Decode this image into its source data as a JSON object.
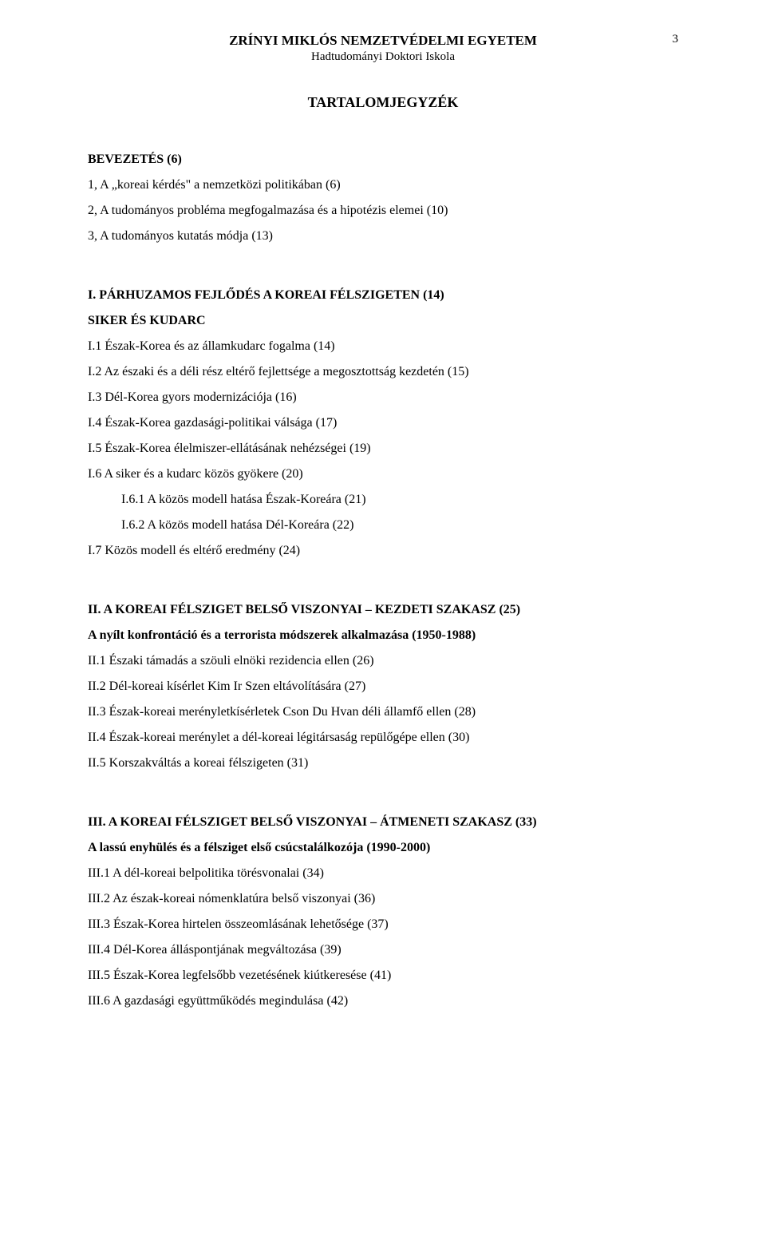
{
  "header": {
    "university": "ZRÍNYI MIKLÓS NEMZETVÉDELMI EGYETEM",
    "school": "Hadtudományi Doktori Iskola",
    "page_number": "3"
  },
  "title": "TARTALOMJEGYZÉK",
  "intro": {
    "heading": "BEVEZETÉS (6)",
    "items": [
      "1, A „koreai kérdés\" a nemzetközi politikában (6)",
      "2, A tudományos probléma megfogalmazása és a hipotézis elemei (10)",
      "3, A tudományos kutatás módja (13)"
    ]
  },
  "chapter1": {
    "heading": "I. PÁRHUZAMOS FEJLŐDÉS A KOREAI FÉLSZIGETEN (14)",
    "subtitle": "SIKER ÉS KUDARC",
    "items": [
      "I.1 Észak-Korea és az államkudarc fogalma (14)",
      "I.2 Az északi és a déli rész eltérő fejlettsége a megosztottság kezdetén (15)",
      "I.3 Dél-Korea gyors modernizációja (16)",
      "I.4 Észak-Korea gazdasági-politikai válsága (17)",
      "I.5 Észak-Korea élelmiszer-ellátásának nehézségei (19)",
      "I.6 A siker és a kudarc közös gyökere (20)"
    ],
    "sub_indent": [
      "I.6.1 A közös modell hatása Észak-Koreára (21)",
      "I.6.2 A közös modell hatása Dél-Koreára (22)"
    ],
    "tail": [
      "I.7 Közös modell és eltérő eredmény (24)"
    ]
  },
  "chapter2": {
    "heading": "II. A KOREAI FÉLSZIGET BELSŐ VISZONYAI – KEZDETI SZAKASZ (25)",
    "subtitle": "A nyílt konfrontáció és a terrorista módszerek alkalmazása (1950-1988)",
    "items": [
      "II.1 Északi támadás a szöuli elnöki rezidencia ellen (26)",
      "II.2 Dél-koreai kísérlet Kim Ir Szen eltávolítására (27)",
      "II.3 Észak-koreai merényletkísérletek Cson Du Hvan déli államfő ellen (28)",
      "II.4 Észak-koreai merénylet a dél-koreai légitársaság repülőgépe ellen (30)",
      "II.5 Korszakváltás a koreai félszigeten (31)"
    ]
  },
  "chapter3": {
    "heading": "III. A KOREAI FÉLSZIGET BELSŐ VISZONYAI – ÁTMENETI SZAKASZ (33)",
    "subtitle": "A lassú enyhülés és a félsziget első csúcstalálkozója (1990-2000)",
    "items": [
      "III.1 A dél-koreai belpolitika törésvonalai (34)",
      "III.2 Az észak-koreai nómenklatúra belső viszonyai (36)",
      "III.3 Észak-Korea hirtelen összeomlásának lehetősége (37)",
      "III.4 Dél-Korea álláspontjának megváltozása (39)",
      "III.5 Észak-Korea legfelsőbb vezetésének kiútkeresése (41)",
      "III.6 A gazdasági együttműködés megindulása (42)"
    ]
  }
}
